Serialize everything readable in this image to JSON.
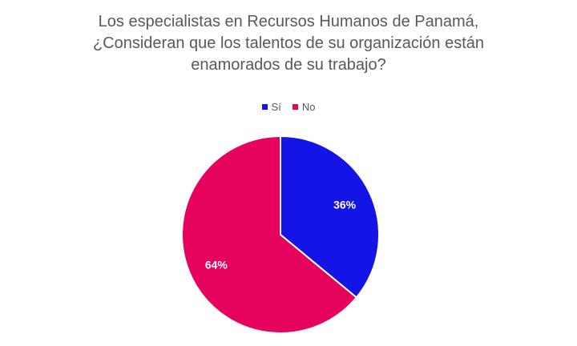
{
  "chart_data": {
    "type": "pie",
    "title_lines": [
      "Los especialistas en Recursos Humanos de Panamá,",
      "¿Consideran que los talentos de su organización están",
      "enamorados  de su trabajo?"
    ],
    "categories": [
      "Sí",
      "No"
    ],
    "values": [
      36,
      64
    ],
    "data_labels": [
      "36%",
      "64%"
    ],
    "colors": [
      "#1414e6",
      "#e6035e"
    ],
    "legend_position": "top"
  }
}
